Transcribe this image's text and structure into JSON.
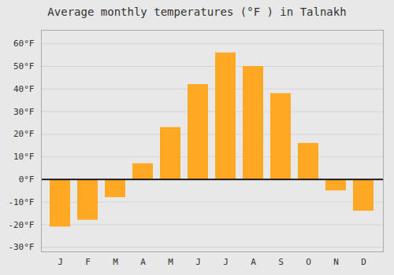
{
  "chart_data": {
    "type": "bar",
    "title": "Average monthly temperatures (°F ) in Talnakh",
    "categories": [
      "J",
      "F",
      "M",
      "A",
      "M",
      "J",
      "J",
      "A",
      "S",
      "O",
      "N",
      "D"
    ],
    "values": [
      -21,
      -18,
      -8,
      7,
      23,
      42,
      56,
      50,
      38,
      16,
      -5,
      -14
    ],
    "color": "#FFA824",
    "ylim": [
      -32,
      66
    ],
    "yticks": [
      {
        "value": -30,
        "label": "-30°F"
      },
      {
        "value": -20,
        "label": "-20°F"
      },
      {
        "value": -10,
        "label": "-10°F"
      },
      {
        "value": 0,
        "label": "0°F"
      },
      {
        "value": 10,
        "label": "10°F"
      },
      {
        "value": 20,
        "label": "20°F"
      },
      {
        "value": 30,
        "label": "30°F"
      },
      {
        "value": 40,
        "label": "40°F"
      },
      {
        "value": 50,
        "label": "50°F"
      },
      {
        "value": 60,
        "label": "60°F"
      }
    ],
    "grid": true
  }
}
